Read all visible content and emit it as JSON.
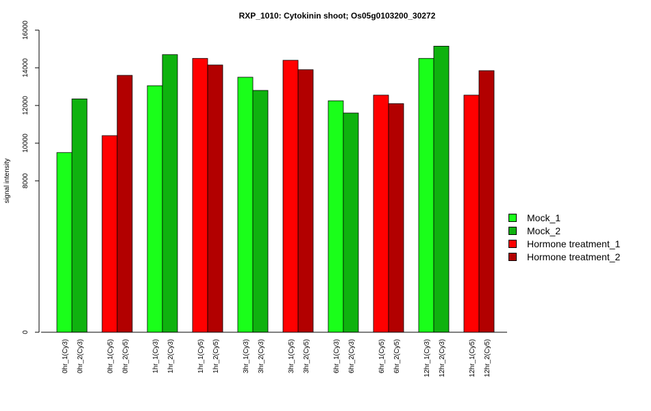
{
  "chart_data": {
    "type": "bar",
    "title": "RXP_1010: Cytokinin shoot; Os05g0103200_30272",
    "xlabel": "",
    "ylabel": "signal intensity",
    "y_tick_labels": [
      "0",
      "8000",
      "10000",
      "12000",
      "14000",
      "16000"
    ],
    "categories": [
      "0hr_1(Cy3)",
      "0hr_2(Cy3)",
      "0hr_1(Cy5)",
      "0hr_2(Cy5)",
      "1hr_1(Cy3)",
      "1hr_2(Cy3)",
      "1hr_1(Cy5)",
      "1hr_2(Cy5)",
      "3hr_1(Cy3)",
      "3hr_2(Cy3)",
      "3hr_1(Cy5)",
      "3hr_2(Cy5)",
      "6hr_1(Cy3)",
      "6hr_2(Cy3)",
      "6hr_1(Cy5)",
      "6hr_2(Cy5)",
      "12hr_1(Cy3)",
      "12hr_2(Cy3)",
      "12hr_1(Cy5)",
      "12hr_2(Cy5)"
    ],
    "values": [
      9500,
      12350,
      10400,
      13600,
      13050,
      14700,
      14500,
      14150,
      13500,
      12800,
      14400,
      13900,
      12250,
      11600,
      12550,
      12100,
      14500,
      15150,
      12550,
      13850
    ],
    "bar_series_index": [
      0,
      1,
      2,
      3,
      0,
      1,
      2,
      3,
      0,
      1,
      2,
      3,
      0,
      1,
      2,
      3,
      0,
      1,
      2,
      3
    ],
    "series": [
      {
        "name": "Mock_1",
        "color": "#1aff1a"
      },
      {
        "name": "Mock_2",
        "color": "#0fb20f"
      },
      {
        "name": "Hormone treatment_1",
        "color": "#ff0000"
      },
      {
        "name": "Hormone treatment_2",
        "color": "#b20000"
      }
    ],
    "legend_position": "right",
    "grid": false
  }
}
